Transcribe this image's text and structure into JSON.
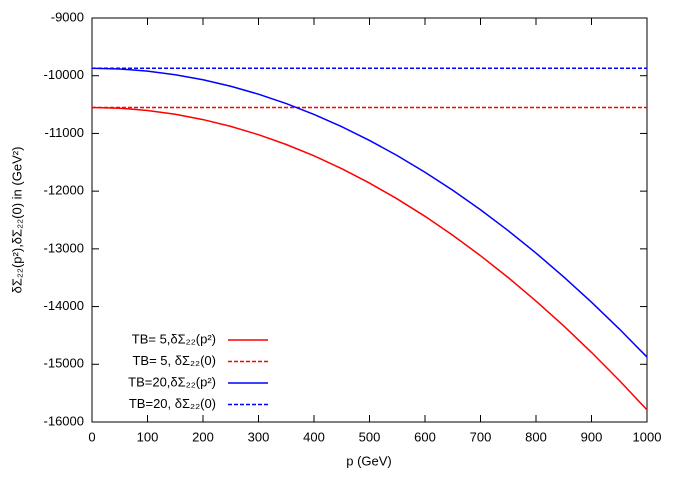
{
  "chart_data": {
    "type": "line",
    "xlabel": "p (GeV)",
    "ylabel": "δΣ₂₂(p²),δΣ₂₂(0) in (GeV²)",
    "x": [
      0,
      50,
      100,
      150,
      200,
      250,
      300,
      350,
      400,
      450,
      500,
      550,
      600,
      650,
      700,
      750,
      800,
      850,
      900,
      950,
      1000
    ],
    "series": [
      {
        "name": "TB= 5,δΣ₂₂(p²)",
        "color": "#ff0000",
        "dashed": false,
        "values": [
          -10550,
          -10563,
          -10602,
          -10668,
          -10760,
          -10878,
          -11022,
          -11192,
          -11388,
          -11611,
          -11860,
          -12135,
          -12436,
          -12764,
          -13118,
          -13498,
          -13904,
          -14336,
          -14794,
          -15279,
          -15790
        ]
      },
      {
        "name": "TB= 5, δΣ₂₂(0)",
        "color": "#ff0000",
        "dashed": true,
        "values": [
          -10550,
          -10550,
          -10550,
          -10550,
          -10550,
          -10550,
          -10550,
          -10550,
          -10550,
          -10550,
          -10550,
          -10550,
          -10550,
          -10550,
          -10550,
          -10550,
          -10550,
          -10550,
          -10550,
          -10550,
          -10550
        ]
      },
      {
        "name": "TB=20,δΣ₂₂(p²)",
        "color": "#0000ff",
        "dashed": false,
        "values": [
          -9870,
          -9883,
          -9920,
          -9983,
          -10070,
          -10183,
          -10320,
          -10483,
          -10671,
          -10884,
          -11121,
          -11384,
          -11672,
          -11985,
          -12322,
          -12685,
          -13073,
          -13486,
          -13924,
          -14387,
          -14875
        ]
      },
      {
        "name": "TB=20, δΣ₂₂(0)",
        "color": "#0000ff",
        "dashed": true,
        "values": [
          -9870,
          -9870,
          -9870,
          -9870,
          -9870,
          -9870,
          -9870,
          -9870,
          -9870,
          -9870,
          -9870,
          -9870,
          -9870,
          -9870,
          -9870,
          -9870,
          -9870,
          -9870,
          -9870,
          -9870,
          -9870
        ]
      }
    ],
    "xlim": [
      0,
      1000
    ],
    "xticks": [
      0,
      100,
      200,
      300,
      400,
      500,
      600,
      700,
      800,
      900,
      1000
    ],
    "ylim": [
      -16000,
      -9000
    ],
    "yticks": [
      -16000,
      -15000,
      -14000,
      -13000,
      -12000,
      -11000,
      -10000,
      -9000
    ],
    "grid": false,
    "legend": "lower left"
  }
}
